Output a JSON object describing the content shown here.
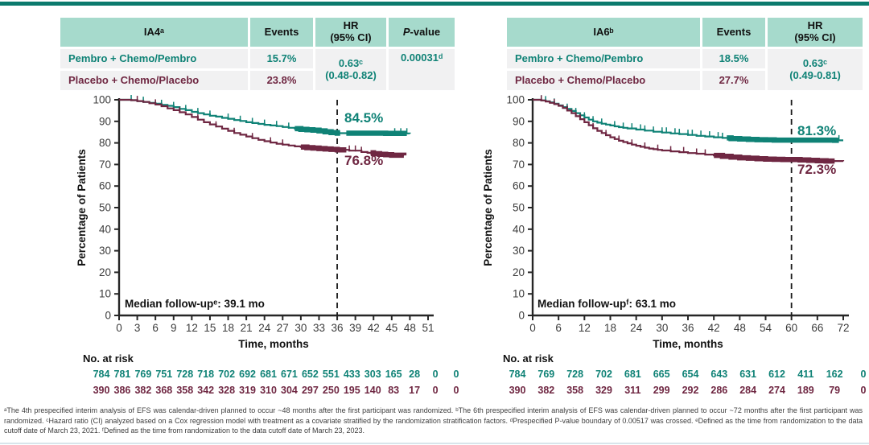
{
  "palette": {
    "teal": "#0F8276",
    "maroon": "#6F2742",
    "header_bg": "#A6DACC",
    "row_bg": "#F1F1F2",
    "topbar": "#0C7A6D",
    "bottombar": "#D8E5EB",
    "axis": "#262626",
    "tick_text": "#3C3C3C"
  },
  "tables": {
    "left": {
      "title": "IA4ᵃ",
      "col_events": "Events",
      "col_hr_line1": "HR",
      "col_hr_line2": "(95% CI)",
      "col_p_italic": "P",
      "col_p_rest": "-value",
      "rows": [
        {
          "name": "Pembro + Chemo/Pembro",
          "events": "15.7%"
        },
        {
          "name": "Placebo + Chemo/Placebo",
          "events": "23.8%"
        }
      ],
      "hr_line1": "0.63ᶜ",
      "hr_line2": "(0.48-0.82)",
      "p_value": "0.00031ᵈ"
    },
    "right": {
      "title": "IA6ᵇ",
      "col_events": "Events",
      "col_hr_line1": "HR",
      "col_hr_line2": "(95% CI)",
      "rows": [
        {
          "name": "Pembro + Chemo/Pembro",
          "events": "18.5%"
        },
        {
          "name": "Placebo + Chemo/Placebo",
          "events": "27.7%"
        }
      ],
      "hr_line1": "0.63ᶜ",
      "hr_line2": "(0.49-0.81)"
    }
  },
  "chart_data": [
    {
      "type": "line",
      "subtype": "kaplan-meier",
      "title": "IA4ᵃ",
      "xlabel": "Time, months",
      "ylabel": "Percentage of Patients",
      "xlim": [
        0,
        51
      ],
      "ylim": [
        0,
        100
      ],
      "x_ticks": [
        0,
        3,
        6,
        9,
        12,
        15,
        18,
        21,
        24,
        27,
        30,
        33,
        36,
        39,
        42,
        45,
        48,
        51
      ],
      "y_ticks": [
        0,
        10,
        20,
        30,
        40,
        50,
        60,
        70,
        80,
        90,
        100
      ],
      "dashed_x": 36,
      "median_label": "Median follow-upᵉ:  39.1 mo",
      "risk_label": "No. at risk",
      "series": [
        {
          "name": "Pembro + Chemo/Pembro",
          "color": "#0F8276",
          "end_label": "84.5%",
          "points": [
            [
              0,
              100
            ],
            [
              2,
              99.8
            ],
            [
              3,
              99.4
            ],
            [
              4,
              99
            ],
            [
              5,
              98.6
            ],
            [
              6,
              98.2
            ],
            [
              7,
              97.6
            ],
            [
              8,
              97.2
            ],
            [
              9,
              96.6
            ],
            [
              10,
              95.8
            ],
            [
              11,
              95.2
            ],
            [
              12,
              94.4
            ],
            [
              13,
              93.8
            ],
            [
              14,
              93.2
            ],
            [
              15,
              92.6
            ],
            [
              16,
              92.2
            ],
            [
              17,
              91.6
            ],
            [
              18,
              91.2
            ],
            [
              19,
              90.6
            ],
            [
              20,
              90.2
            ],
            [
              21,
              89.6
            ],
            [
              22,
              89.2
            ],
            [
              23,
              88.8
            ],
            [
              24,
              88.4
            ],
            [
              25,
              88.1
            ],
            [
              26,
              87.8
            ],
            [
              27,
              87.4
            ],
            [
              28,
              87
            ],
            [
              29,
              86.6
            ],
            [
              30,
              86.3
            ],
            [
              31,
              86.1
            ],
            [
              32,
              85.9
            ],
            [
              33,
              85.6
            ],
            [
              34,
              85.2
            ],
            [
              35,
              84.8
            ],
            [
              36,
              84.5
            ],
            [
              40,
              84.5
            ],
            [
              44,
              84.4
            ],
            [
              48,
              84.3
            ]
          ],
          "censor_ticks": [
            2,
            4,
            7,
            9,
            11,
            13,
            15,
            18,
            20,
            22,
            24,
            26,
            28,
            45.5,
            46.5,
            47.5
          ],
          "censor_bands": [
            [
              29,
              36.5
            ],
            [
              37.5,
              47.5
            ]
          ],
          "at_risk": [
            784,
            781,
            769,
            751,
            728,
            718,
            702,
            692,
            681,
            671,
            652,
            551,
            433,
            303,
            165,
            28,
            0,
            0
          ]
        },
        {
          "name": "Placebo + Chemo/Placebo",
          "color": "#6F2742",
          "end_label": "76.8%",
          "points": [
            [
              0,
              100
            ],
            [
              2,
              99.8
            ],
            [
              3,
              99.4
            ],
            [
              4,
              99
            ],
            [
              5,
              98.4
            ],
            [
              6,
              97.8
            ],
            [
              7,
              97
            ],
            [
              8,
              96
            ],
            [
              9,
              95.2
            ],
            [
              10,
              94.2
            ],
            [
              11,
              93.2
            ],
            [
              12,
              92
            ],
            [
              13,
              90.8
            ],
            [
              14,
              89.6
            ],
            [
              15,
              88.6
            ],
            [
              16,
              87.6
            ],
            [
              17,
              86.6
            ],
            [
              18,
              85.6
            ],
            [
              19,
              84.6
            ],
            [
              20,
              83.8
            ],
            [
              21,
              83
            ],
            [
              22,
              82.2
            ],
            [
              23,
              81.4
            ],
            [
              24,
              80.8
            ],
            [
              25,
              80.2
            ],
            [
              26,
              79.6
            ],
            [
              27,
              79.2
            ],
            [
              28,
              78.8
            ],
            [
              29,
              78.4
            ],
            [
              30,
              78.1
            ],
            [
              31,
              77.8
            ],
            [
              32,
              77.6
            ],
            [
              33,
              77.4
            ],
            [
              34,
              77.2
            ],
            [
              35,
              77
            ],
            [
              36,
              76.8
            ],
            [
              38,
              76.4
            ],
            [
              40,
              75.8
            ],
            [
              41,
              75.4
            ],
            [
              42,
              75
            ],
            [
              43,
              74.7
            ],
            [
              44,
              74.5
            ],
            [
              45,
              74.3
            ],
            [
              47,
              74.2
            ]
          ],
          "censor_ticks": [
            3,
            6,
            10,
            13,
            16,
            19,
            22,
            25,
            27,
            38,
            39,
            40
          ],
          "censor_bands": [
            [
              30,
              37.5
            ],
            [
              41.5,
              47
            ]
          ],
          "at_risk": [
            390,
            386,
            382,
            368,
            358,
            342,
            328,
            319,
            310,
            304,
            297,
            250,
            195,
            140,
            83,
            17,
            0,
            0
          ]
        }
      ]
    },
    {
      "type": "line",
      "subtype": "kaplan-meier",
      "title": "IA6ᵇ",
      "xlabel": "Time, months",
      "ylabel": "Percentage of Patients",
      "xlim": [
        0,
        72
      ],
      "ylim": [
        0,
        100
      ],
      "x_ticks": [
        0,
        6,
        12,
        18,
        24,
        30,
        36,
        42,
        48,
        54,
        60,
        66,
        72
      ],
      "y_ticks": [
        0,
        10,
        20,
        30,
        40,
        50,
        60,
        70,
        80,
        90,
        100
      ],
      "dashed_x": 60,
      "median_label": "Median follow-upᶠ:  63.1 mo",
      "risk_label": "No. at risk",
      "series": [
        {
          "name": "Pembro + Chemo/Pembro",
          "color": "#0F8276",
          "end_label": "81.3%",
          "points": [
            [
              0,
              100
            ],
            [
              2,
              99.7
            ],
            [
              3,
              99.3
            ],
            [
              4,
              98.8
            ],
            [
              5,
              98.2
            ],
            [
              6,
              97.4
            ],
            [
              7,
              96.6
            ],
            [
              8,
              95.8
            ],
            [
              9,
              94.8
            ],
            [
              10,
              93.8
            ],
            [
              11,
              92.8
            ],
            [
              12,
              91.8
            ],
            [
              13,
              90.8
            ],
            [
              14,
              90
            ],
            [
              15,
              89.4
            ],
            [
              16,
              88.9
            ],
            [
              17,
              88.5
            ],
            [
              18,
              88.1
            ],
            [
              19,
              87.7
            ],
            [
              20,
              87.3
            ],
            [
              21,
              87
            ],
            [
              22,
              86.7
            ],
            [
              24,
              86.2
            ],
            [
              26,
              85.7
            ],
            [
              28,
              85.2
            ],
            [
              30,
              84.8
            ],
            [
              32,
              84.4
            ],
            [
              34,
              84.1
            ],
            [
              36,
              83.7
            ],
            [
              38,
              83.3
            ],
            [
              40,
              83
            ],
            [
              42,
              82.6
            ],
            [
              44,
              82.3
            ],
            [
              46,
              82
            ],
            [
              48,
              81.8
            ],
            [
              50,
              81.6
            ],
            [
              52,
              81.5
            ],
            [
              54,
              81.4
            ],
            [
              56,
              81.3
            ],
            [
              60,
              81.3
            ],
            [
              66,
              81.3
            ],
            [
              70,
              81.2
            ],
            [
              72,
              81.2
            ]
          ],
          "censor_ticks": [
            2,
            3,
            5,
            8,
            10,
            12,
            14,
            16,
            19,
            21,
            23,
            25,
            26,
            28,
            30,
            31,
            33,
            34,
            36,
            37,
            39,
            41,
            43,
            44,
            71
          ],
          "censor_bands": [
            [
              45,
              71
            ]
          ],
          "at_risk": [
            784,
            769,
            728,
            702,
            681,
            665,
            654,
            643,
            631,
            612,
            411,
            162,
            0
          ]
        },
        {
          "name": "Placebo + Chemo/Placebo",
          "color": "#6F2742",
          "end_label": "72.3%",
          "points": [
            [
              0,
              100
            ],
            [
              2,
              99.7
            ],
            [
              3,
              99.2
            ],
            [
              4,
              98.6
            ],
            [
              5,
              98
            ],
            [
              6,
              97.2
            ],
            [
              7,
              96.2
            ],
            [
              8,
              95
            ],
            [
              9,
              93.8
            ],
            [
              10,
              92.4
            ],
            [
              11,
              91
            ],
            [
              12,
              89.6
            ],
            [
              13,
              88.2
            ],
            [
              14,
              86.8
            ],
            [
              15,
              85.6
            ],
            [
              16,
              84.6
            ],
            [
              17,
              83.6
            ],
            [
              18,
              82.6
            ],
            [
              19,
              81.8
            ],
            [
              20,
              81
            ],
            [
              21,
              80.4
            ],
            [
              22,
              79.8
            ],
            [
              23,
              79.2
            ],
            [
              24,
              78.7
            ],
            [
              25,
              78.2
            ],
            [
              26,
              77.8
            ],
            [
              27,
              77.4
            ],
            [
              28,
              77.1
            ],
            [
              29,
              76.8
            ],
            [
              30,
              76.5
            ],
            [
              32,
              76.1
            ],
            [
              34,
              75.7
            ],
            [
              36,
              75.3
            ],
            [
              38,
              75
            ],
            [
              40,
              74.6
            ],
            [
              42,
              74.2
            ],
            [
              44,
              73.8
            ],
            [
              46,
              73.4
            ],
            [
              48,
              73.1
            ],
            [
              50,
              72.9
            ],
            [
              52,
              72.7
            ],
            [
              54,
              72.5
            ],
            [
              56,
              72.4
            ],
            [
              58,
              72.3
            ],
            [
              60,
              72.3
            ],
            [
              62,
              72.1
            ],
            [
              64,
              71.9
            ],
            [
              66,
              71.7
            ],
            [
              68,
              71.6
            ],
            [
              72,
              71.5
            ]
          ],
          "censor_ticks": [
            2,
            5,
            8,
            11,
            14,
            17,
            20,
            23,
            26,
            29,
            32,
            35,
            38,
            40
          ],
          "censor_bands": [
            [
              42,
              70
            ]
          ],
          "at_risk": [
            390,
            382,
            358,
            329,
            311,
            299,
            292,
            286,
            284,
            274,
            189,
            79,
            0
          ]
        }
      ]
    }
  ],
  "footnote": "ᵃThe 4th prespecified interim analysis of EFS was calendar-driven planned to occur ~48 months after the first participant was randomized. ᵇThe 6th prespecified interim analysis of EFS was calendar-driven planned to occur ~72 months after the first participant was randomized. ᶜHazard ratio (CI) analyzed based on a Cox regression model with treatment as a covariate stratified by the randomization stratification factors. ᵈPrespecified P-value boundary of 0.00517 was crossed. ᵉDefined as the time from randomization to the data cutoff date of March 23, 2021. ᶠDefined as the time from randomization to the data cutoff date of March 23, 2023."
}
